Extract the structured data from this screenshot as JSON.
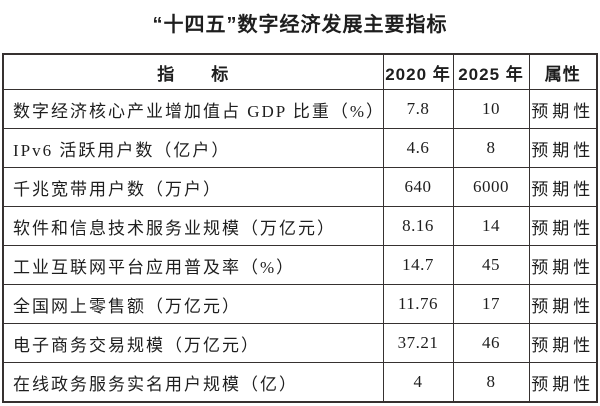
{
  "title": "“十四五”数字经济发展主要指标",
  "table": {
    "headers": {
      "indicator": "指　　标",
      "y2020": "2020 年",
      "y2025": "2025 年",
      "attr": "属性"
    },
    "rows": [
      {
        "indicator": "数字经济核心产业增加值占 GDP 比重（%）",
        "y2020": "7.8",
        "y2025": "10",
        "attr": "预期性"
      },
      {
        "indicator": "IPv6 活跃用户数（亿户）",
        "y2020": "4.6",
        "y2025": "8",
        "attr": "预期性"
      },
      {
        "indicator": "千兆宽带用户数（万户）",
        "y2020": "640",
        "y2025": "6000",
        "attr": "预期性"
      },
      {
        "indicator": "软件和信息技术服务业规模（万亿元）",
        "y2020": "8.16",
        "y2025": "14",
        "attr": "预期性"
      },
      {
        "indicator": "工业互联网平台应用普及率（%）",
        "y2020": "14.7",
        "y2025": "45",
        "attr": "预期性"
      },
      {
        "indicator": "全国网上零售额（万亿元）",
        "y2020": "11.76",
        "y2025": "17",
        "attr": "预期性"
      },
      {
        "indicator": "电子商务交易规模（万亿元）",
        "y2020": "37.21",
        "y2025": "46",
        "attr": "预期性"
      },
      {
        "indicator": "在线政务服务实名用户规模（亿）",
        "y2020": "4",
        "y2025": "8",
        "attr": "预期性"
      }
    ]
  }
}
